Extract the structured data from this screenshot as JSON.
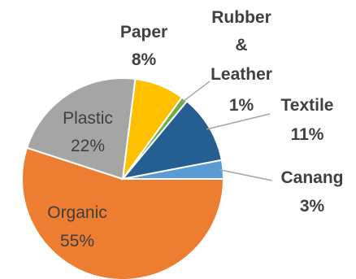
{
  "chart_data": {
    "type": "pie",
    "slices": [
      {
        "label": "Organic",
        "pct_label": "55%",
        "value": 55,
        "color": "#ed7d31"
      },
      {
        "label": "Plastic",
        "pct_label": "22%",
        "value": 22,
        "color": "#a5a5a5"
      },
      {
        "label": "Paper",
        "pct_label": "8%",
        "value": 8,
        "color": "#ffc000"
      },
      {
        "label": "Rubber & Leather",
        "label_lines": [
          "Rubber",
          "&",
          "Leather"
        ],
        "pct_label": "1%",
        "value": 1,
        "color": "#70ad47"
      },
      {
        "label": "Textile",
        "pct_label": "11%",
        "value": 11,
        "color": "#255e91"
      },
      {
        "label": "Canang",
        "pct_label": "3%",
        "value": 3,
        "color": "#5b9bd5"
      }
    ],
    "title": "",
    "legend": "none",
    "label_placement": "mixed (Organic and Plastic inside; others outside with leader lines)"
  }
}
